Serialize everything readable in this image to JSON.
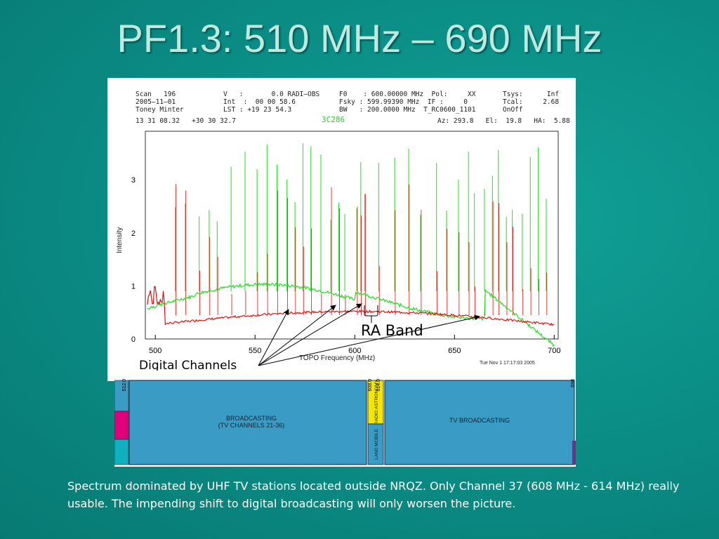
{
  "slide": {
    "title": "PF1.3:  510 MHz – 690 MHz",
    "caption": "Spectrum dominated by UHF TV stations located outside NRQZ. Only Channel 37 (608 MHz - 614 MHz) really usable. The impending shift to digital broadcasting will only worsen the picture."
  },
  "plot_header": {
    "scan": "Scan   196",
    "date": "2005–11–01",
    "observer": "Toney Minter",
    "coords": "13 31 08.32   +30 30 32.7",
    "v": "V   :       0.0 RADI–OBS",
    "int": "Int  :  00 00 58.6",
    "lst": "LST : +19 23 54.3",
    "f0": "F0    : 600.00000 MHz  Pol:     XX",
    "fsky": "Fsky : 599.99390 MHz  IF :     0",
    "bw": "BW   : 200.0000 MHz  T_RC0600_1101",
    "tsys": "Tsys:      Inf",
    "tcal": "Tcal:     2.68",
    "onoff": "OnOff",
    "source": "3C286",
    "azel": "Az: 293.8   El:  19.8   HA:  5.88",
    "ylabel": "Intensity",
    "xlabel": "TOPO Frequency (MHz)",
    "timestamp": "Tue Nov  1 17:17:03 2005"
  },
  "axes": {
    "yticks": [
      "0",
      "1",
      "2",
      "3"
    ],
    "xticks": [
      "500",
      "550",
      "600",
      "650",
      "700"
    ]
  },
  "annotations": {
    "ra_band": "RA Band",
    "digital_channels": "Digital Channels"
  },
  "allocation": {
    "freq_labels": [
      "512.0",
      "608.0",
      "614.0",
      "698"
    ],
    "broadcasting": [
      "BROADCASTING",
      "(TV CHANNELS 21-36)"
    ],
    "radio_astronomy": "RADIO ASTRONOMY",
    "land_mobile": "LAND MOBILE",
    "tv_broadcasting": "TV BROADCASTING"
  },
  "colors": {
    "green_trace": "#22dd22",
    "red_trace": "#e01010",
    "band_blue": "#3a9bc4",
    "radio_astro_yellow": "#f5e600",
    "magenta": "#e0007a",
    "cyan": "#10b0c0"
  }
}
